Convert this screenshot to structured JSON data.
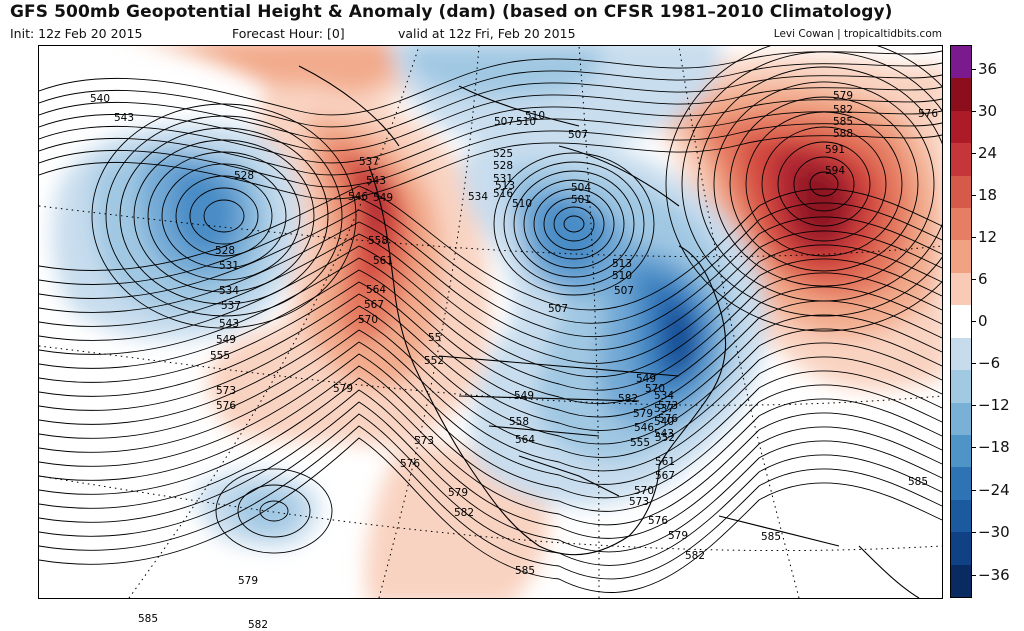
{
  "header": {
    "title": "GFS 500mb Geopotential Height & Anomaly (dam) (based on CFSR 1981–2010 Climatology)",
    "init": "Init: 12z Feb 20 2015",
    "forecast_hour": "Forecast Hour: [0]",
    "valid": "valid at 12z Fri, Feb 20 2015",
    "credit": "Levi Cowan | tropicaltidbits.com"
  },
  "colorbar": {
    "labels": [
      "36",
      "30",
      "24",
      "18",
      "12",
      "6",
      "0",
      "−6",
      "−12",
      "−18",
      "−24",
      "−30",
      "−36"
    ],
    "colors": [
      "#7b1a8f",
      "#8c0d1c",
      "#ad1a28",
      "#c5363a",
      "#d65a4a",
      "#e57e62",
      "#f0a283",
      "#f9cbb6",
      "#ffffff",
      "#c6dcec",
      "#a1c9e1",
      "#78b0d6",
      "#4f94c7",
      "#2e74b5",
      "#1c5aa0",
      "#104185",
      "#0a2a62"
    ]
  },
  "anomaly_colors": {
    "pos1": "#f9d3c1",
    "pos2": "#f2ab8c",
    "pos3": "#e4785f",
    "pos4": "#d34a40",
    "pos5": "#b02632",
    "pos6": "#8c1524",
    "neg1": "#c8ddee",
    "neg2": "#a0c8e3",
    "neg3": "#72a9d6",
    "neg4": "#4a8cc6",
    "neg5": "#2b6cb2",
    "neg6": "#174b92"
  },
  "contour_labels": [
    "540",
    "543",
    "528",
    "528",
    "531",
    "534",
    "537",
    "543",
    "549",
    "555",
    "537",
    "543",
    "546",
    "549",
    "558",
    "561",
    "564",
    "567",
    "570",
    "573",
    "576",
    "579",
    "525",
    "528",
    "531",
    "534",
    "516",
    "513",
    "510",
    "507",
    "510",
    "504",
    "501",
    "513",
    "510",
    "507",
    "507",
    "55",
    "552",
    "549",
    "558",
    "564",
    "573",
    "576",
    "579",
    "582",
    "585",
    "585",
    "570",
    "573",
    "576",
    "579",
    "582",
    "585",
    "549",
    "546",
    "552",
    "555",
    "561",
    "567",
    "570",
    "573",
    "576",
    "579",
    "582",
    "579",
    "582",
    "585",
    "588",
    "591",
    "594",
    "576",
    "579",
    "582",
    "585",
    "510",
    "507",
    "534",
    "537",
    "540",
    "543"
  ]
}
